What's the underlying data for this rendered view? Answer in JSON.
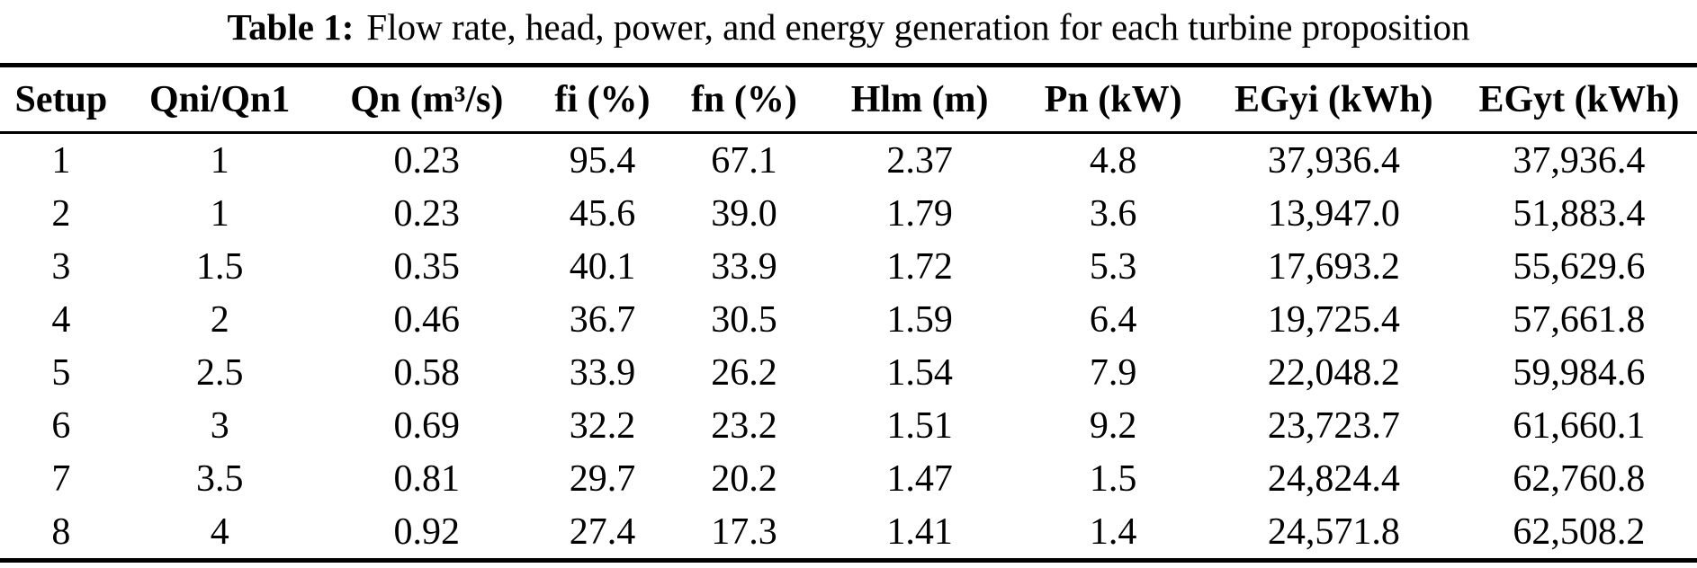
{
  "table": {
    "caption": {
      "label": "Table 1:",
      "text": "Flow rate, head, power, and energy generation for each turbine proposition"
    },
    "columns": [
      "Setup",
      "Qni/Qn1",
      "Qn (m³/s)",
      "fi (%)",
      "fn (%)",
      "Hlm (m)",
      "Pn (kW)",
      "EGyi (kWh)",
      "EGyt (kWh)"
    ],
    "rows": [
      [
        "1",
        "1",
        "0.23",
        "95.4",
        "67.1",
        "2.37",
        "4.8",
        "37,936.4",
        "37,936.4"
      ],
      [
        "2",
        "1",
        "0.23",
        "45.6",
        "39.0",
        "1.79",
        "3.6",
        "13,947.0",
        "51,883.4"
      ],
      [
        "3",
        "1.5",
        "0.35",
        "40.1",
        "33.9",
        "1.72",
        "5.3",
        "17,693.2",
        "55,629.6"
      ],
      [
        "4",
        "2",
        "0.46",
        "36.7",
        "30.5",
        "1.59",
        "6.4",
        "19,725.4",
        "57,661.8"
      ],
      [
        "5",
        "2.5",
        "0.58",
        "33.9",
        "26.2",
        "1.54",
        "7.9",
        "22,048.2",
        "59,984.6"
      ],
      [
        "6",
        "3",
        "0.69",
        "32.2",
        "23.2",
        "1.51",
        "9.2",
        "23,723.7",
        "61,660.1"
      ],
      [
        "7",
        "3.5",
        "0.81",
        "29.7",
        "20.2",
        "1.47",
        "1.5",
        "24,824.4",
        "62,760.8"
      ],
      [
        "8",
        "4",
        "0.92",
        "27.4",
        "17.3",
        "1.41",
        "1.4",
        "24,571.8",
        "62,508.2"
      ]
    ]
  },
  "chart_data": {
    "type": "table",
    "title": "Table 1: Flow rate, head, power, and energy generation for each turbine proposition",
    "columns": [
      "Setup",
      "Qni/Qn1",
      "Qn (m3/s)",
      "fi (%)",
      "fn (%)",
      "Hlm (m)",
      "Pn (kW)",
      "EGyi (kWh)",
      "EGyt (kWh)"
    ],
    "rows": [
      [
        1,
        1,
        0.23,
        95.4,
        67.1,
        2.37,
        4.8,
        37936.4,
        37936.4
      ],
      [
        2,
        1,
        0.23,
        45.6,
        39.0,
        1.79,
        3.6,
        13947.0,
        51883.4
      ],
      [
        3,
        1.5,
        0.35,
        40.1,
        33.9,
        1.72,
        5.3,
        17693.2,
        55629.6
      ],
      [
        4,
        2,
        0.46,
        36.7,
        30.5,
        1.59,
        6.4,
        19725.4,
        57661.8
      ],
      [
        5,
        2.5,
        0.58,
        33.9,
        26.2,
        1.54,
        7.9,
        22048.2,
        59984.6
      ],
      [
        6,
        3,
        0.69,
        32.2,
        23.2,
        1.51,
        9.2,
        23723.7,
        61660.1
      ],
      [
        7,
        3.5,
        0.81,
        29.7,
        20.2,
        1.47,
        1.5,
        24824.4,
        62760.8
      ],
      [
        8,
        4,
        0.92,
        27.4,
        17.3,
        1.41,
        1.4,
        24571.8,
        62508.2
      ]
    ]
  }
}
